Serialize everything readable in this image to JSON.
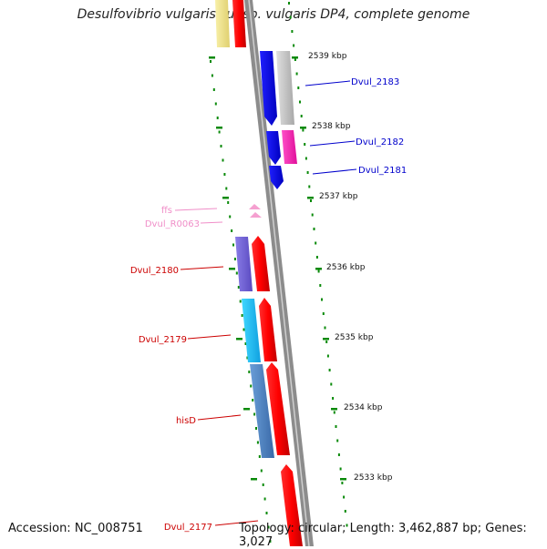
{
  "title": "Desulfovibrio vulgaris subsp. vulgaris DP4, complete genome",
  "footer": {
    "accession": "Accession: NC_008751",
    "summary": "Topology: circular; Length: 3,462,887 bp; Genes: 3,027"
  },
  "colors": {
    "backbone": "#8c8c8c",
    "tick": "#0a8a0a",
    "red_label": "#cc0000",
    "blue_label": "#0000cc",
    "pink_label": "#f08ec8"
  },
  "ticks": [
    {
      "label": "2539 kbp"
    },
    {
      "label": "2538 kbp"
    },
    {
      "label": "2537 kbp"
    },
    {
      "label": "2536 kbp"
    },
    {
      "label": "2535 kbp"
    },
    {
      "label": "2534 kbp"
    },
    {
      "label": "2533 kbp"
    }
  ],
  "features": [
    {
      "name": "Dvul_2183",
      "strand": "-",
      "color": "blue"
    },
    {
      "name": "Dvul_2182",
      "strand": "-",
      "color": "blue"
    },
    {
      "name": "Dvul_2181",
      "strand": "-",
      "color": "blue"
    },
    {
      "name": "ffs",
      "strand": "-",
      "color": "pink"
    },
    {
      "name": "Dvul_R0063",
      "strand": "-",
      "color": "pink"
    },
    {
      "name": "Dvul_2180",
      "strand": "+",
      "color": "red"
    },
    {
      "name": "Dvul_2179",
      "strand": "+",
      "color": "red"
    },
    {
      "name": "hisD",
      "strand": "+",
      "color": "red"
    },
    {
      "name": "Dvul_2177",
      "strand": "+",
      "color": "red"
    }
  ]
}
